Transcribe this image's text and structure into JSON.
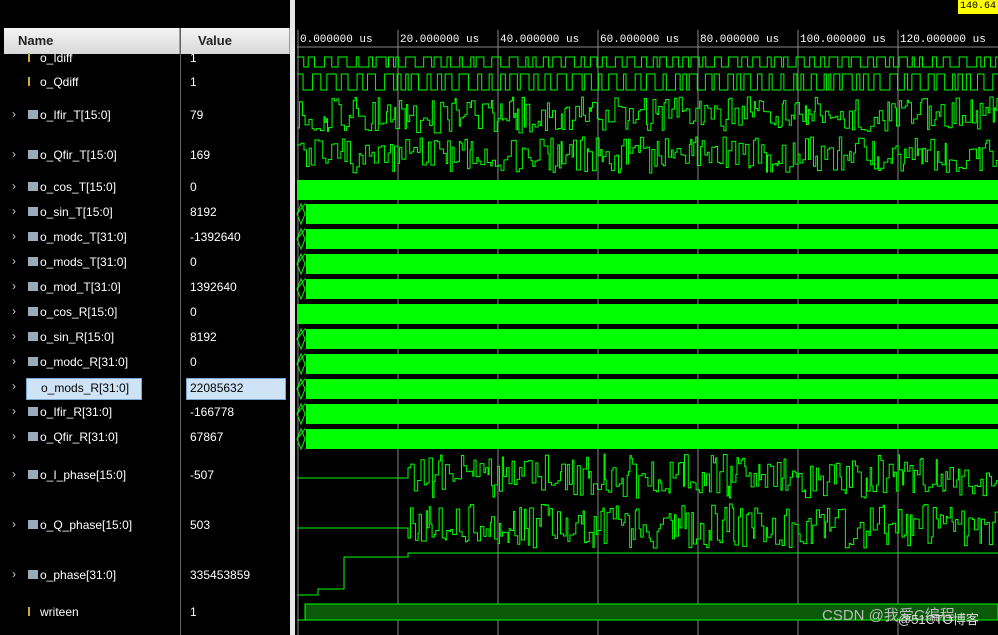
{
  "header": {
    "name_label": "Name",
    "value_label": "Value"
  },
  "cursor_time": "140.64",
  "time_labels": [
    "0.000000 us",
    "20.000000 us",
    "40.000000 us",
    "60.000000 us",
    "80.000000 us",
    "100.000000 us",
    "120.000000 us"
  ],
  "signals": [
    {
      "name": "o_Idiff",
      "value": "1"
    },
    {
      "name": "o_Qdiff",
      "value": "1"
    },
    {
      "name": "o_Ifir_T[15:0]",
      "value": "79"
    },
    {
      "name": "o_Qfir_T[15:0]",
      "value": "169"
    },
    {
      "name": "o_cos_T[15:0]",
      "value": "0"
    },
    {
      "name": "o_sin_T[15:0]",
      "value": "8192"
    },
    {
      "name": "o_modc_T[31:0]",
      "value": "-1392640"
    },
    {
      "name": "o_mods_T[31:0]",
      "value": "0"
    },
    {
      "name": "o_mod_T[31:0]",
      "value": "1392640"
    },
    {
      "name": "o_cos_R[15:0]",
      "value": "0"
    },
    {
      "name": "o_sin_R[15:0]",
      "value": "8192"
    },
    {
      "name": "o_modc_R[31:0]",
      "value": "0"
    },
    {
      "name": "o_mods_R[31:0]",
      "value": "22085632"
    },
    {
      "name": "o_Ifir_R[31:0]",
      "value": "-166778"
    },
    {
      "name": "o_Qfir_R[31:0]",
      "value": "67867"
    },
    {
      "name": "o_I_phase[15:0]",
      "value": "-507"
    },
    {
      "name": "o_Q_phase[15:0]",
      "value": "503"
    },
    {
      "name": "o_phase[31:0]",
      "value": "335453859"
    },
    {
      "name": "writeen",
      "value": "1"
    }
  ],
  "watermark": "CSDN @我爱C编程",
  "watermark2": "@51CTO博客"
}
